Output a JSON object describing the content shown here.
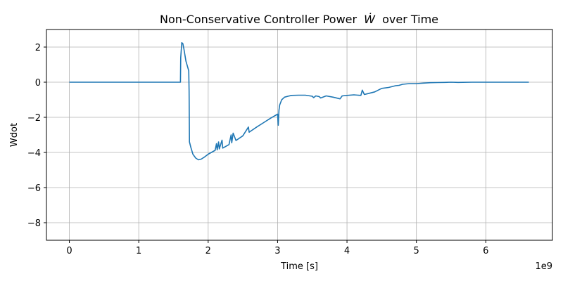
{
  "chart_data": {
    "type": "line",
    "title": "Non-Conservative Controller Power",
    "title_math": "Ẇ",
    "title_suffix": "over Time",
    "xlabel": "Time [s]",
    "ylabel": "Wdot",
    "x_offset_label": "1e9",
    "xlim": [
      -0.33,
      6.96
    ],
    "ylim": [
      -9,
      3
    ],
    "x_ticks": [
      0,
      1,
      2,
      3,
      4,
      5,
      6
    ],
    "x_tick_labels": [
      "0",
      "1",
      "2",
      "3",
      "4",
      "5",
      "6"
    ],
    "y_ticks": [
      2,
      0,
      -2,
      -4,
      -6,
      -8
    ],
    "y_tick_labels": [
      "2",
      "0",
      "−2",
      "−4",
      "−6",
      "−8"
    ],
    "grid": true,
    "color": "#1f77b4",
    "series": [
      {
        "x": [
          0,
          0.5,
          1.0,
          1.5,
          1.6,
          1.605,
          1.62,
          1.635,
          1.65,
          1.68,
          1.72,
          1.725,
          1.73,
          1.75,
          1.78,
          1.82,
          1.86,
          1.9,
          1.95,
          2.0,
          2.1,
          2.12,
          2.13,
          2.15,
          2.16,
          2.2,
          2.21,
          2.3,
          2.33,
          2.34,
          2.36,
          2.4,
          2.5,
          2.58,
          2.59,
          2.6,
          2.7,
          2.8,
          2.9,
          3.0,
          3.01,
          3.02,
          3.03,
          3.06,
          3.1,
          3.15,
          3.2,
          3.3,
          3.4,
          3.5,
          3.52,
          3.55,
          3.6,
          3.62,
          3.7,
          3.8,
          3.9,
          3.93,
          4.0,
          4.1,
          4.2,
          4.22,
          4.25,
          4.3,
          4.4,
          4.45,
          4.5,
          4.6,
          4.7,
          4.75,
          4.8,
          4.9,
          5.0,
          5.1,
          5.2,
          5.3,
          5.4,
          5.5,
          5.6,
          5.8,
          6.0,
          6.2,
          6.4,
          6.62
        ],
        "y": [
          0,
          0,
          0,
          0,
          0,
          1.4,
          2.25,
          2.2,
          1.9,
          1.2,
          0.65,
          -0.5,
          -3.4,
          -3.7,
          -4.1,
          -4.32,
          -4.42,
          -4.38,
          -4.25,
          -4.1,
          -3.88,
          -3.5,
          -3.85,
          -3.4,
          -3.8,
          -3.3,
          -3.75,
          -3.55,
          -3.0,
          -3.45,
          -2.9,
          -3.32,
          -3.05,
          -2.55,
          -2.85,
          -2.82,
          -2.55,
          -2.3,
          -2.05,
          -1.82,
          -2.45,
          -1.6,
          -1.3,
          -1.0,
          -0.85,
          -0.8,
          -0.75,
          -0.74,
          -0.74,
          -0.8,
          -0.88,
          -0.78,
          -0.82,
          -0.9,
          -0.78,
          -0.85,
          -0.95,
          -0.78,
          -0.75,
          -0.72,
          -0.75,
          -0.45,
          -0.7,
          -0.65,
          -0.55,
          -0.45,
          -0.35,
          -0.3,
          -0.2,
          -0.18,
          -0.12,
          -0.08,
          -0.08,
          -0.05,
          -0.03,
          -0.02,
          -0.01,
          0,
          -0.01,
          0,
          0,
          0,
          0,
          0
        ]
      }
    ]
  }
}
